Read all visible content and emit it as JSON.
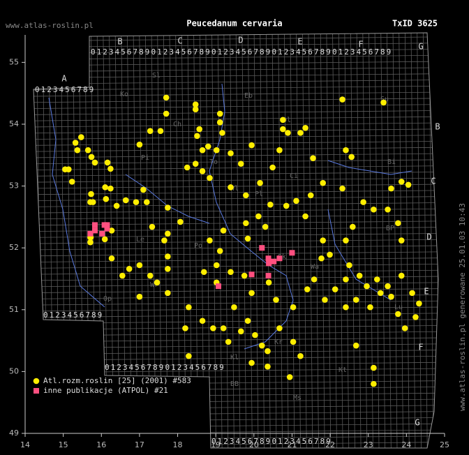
{
  "chart_data": {
    "type": "scatter",
    "title": "Peucedanum cervaria",
    "site": "www.atlas-roslin.pl",
    "taxon_id": "TxID 3625",
    "footer": "www.atlas-roslin.pl generowane 25.01.03 10:43",
    "xlim": [
      14,
      25
    ],
    "ylim": [
      49,
      55.45
    ],
    "xticks": [
      14,
      15,
      16,
      17,
      18,
      19,
      20,
      21,
      22,
      23,
      24,
      25
    ],
    "yticks": [
      49,
      50,
      51,
      52,
      53,
      54,
      55
    ],
    "legend": "lower left",
    "grid_columns": [
      "A",
      "B",
      "C",
      "D",
      "E",
      "F",
      "G"
    ],
    "grid_digits": "0123456789",
    "region_labels": [
      "Sl",
      "Ko",
      "Ch",
      "Eb",
      "Ol",
      "Su",
      "Pi",
      "Ci",
      "Bi",
      "To",
      "Wl",
      "Pl",
      "Le",
      "Po",
      "BP",
      "Wa",
      "Sk",
      "Lu",
      "Wr",
      "Op",
      "Kl",
      "Kr",
      "BB",
      "Ms",
      "Kt"
    ],
    "series": [
      {
        "name": "Atl.rozm.roslin [25] (2001) #583",
        "color": "#ffee00",
        "marker": "circle",
        "x": [
          22.32,
          23.4,
          17.7,
          18.47,
          18.47,
          17.7,
          19.11,
          19.11,
          20.76,
          20.76,
          20.89,
          21.35,
          21.22,
          18.57,
          18.51,
          17.28,
          17.55,
          19.17,
          15.47,
          15.32,
          15.37,
          15.65,
          15.74,
          15.83,
          16.16,
          15.14,
          15.05,
          15.23,
          15.73,
          16.1,
          15.78,
          16.12,
          16.4,
          15.71,
          17.0,
          16.24,
          16.24,
          16.64,
          16.91,
          17.19,
          17.1,
          17.33,
          17.74,
          18.25,
          18.47,
          18.65,
          18.8,
          19.02,
          18.65,
          18.84,
          19.39,
          19.66,
          19.94,
          19.39,
          19.79,
          20.16,
          20.49,
          20.67,
          21.55,
          21.81,
          21.49,
          21.11,
          20.85,
          20.43,
          20.12,
          19.79,
          19.2,
          18.84,
          18.07,
          17.74,
          16.27,
          16.09,
          15.72,
          16.27,
          16.55,
          17.0,
          17.28,
          17.46,
          17.74,
          17.74,
          18.29,
          18.2,
          18.29,
          18.65,
          18.93,
          19.2,
          19.48,
          19.66,
          19.84,
          20.03,
          20.21,
          20.36,
          20.67,
          21.03,
          21.22,
          21.03,
          20.58,
          20.39,
          19.94,
          19.39,
          19.11,
          19.02,
          19.75,
          21.4,
          21.58,
          21.86,
          22.13,
          22.41,
          22.5,
          22.77,
          22.96,
          23.23,
          23.32,
          23.6,
          23.78,
          23.96,
          24.24,
          24.33,
          24.15,
          23.87,
          23.51,
          23.05,
          22.68,
          22.41,
          22.41,
          22.59,
          22.87,
          23.14,
          23.51,
          23.78,
          23.87,
          23.6,
          23.87,
          24.05,
          22.41,
          22.56,
          22.32,
          21.77,
          21.99,
          23.14,
          23.14,
          22.68,
          20.94,
          20.36,
          19.94,
          19.33,
          18.69,
          17.0,
          16.73,
          15.71,
          15.71,
          17.74,
          17.65,
          19.02,
          19.84,
          20.3,
          21.35,
          21.81
        ],
        "y": [
          54.4,
          54.35,
          54.43,
          54.32,
          54.24,
          54.17,
          54.17,
          54.03,
          54.07,
          53.92,
          53.86,
          53.94,
          53.86,
          53.92,
          53.81,
          53.89,
          53.89,
          53.86,
          53.79,
          53.7,
          53.58,
          53.58,
          53.47,
          53.38,
          53.38,
          53.27,
          53.27,
          53.07,
          52.87,
          52.98,
          52.74,
          52.79,
          52.68,
          52.74,
          53.67,
          53.28,
          52.96,
          52.77,
          52.74,
          52.74,
          52.94,
          52.34,
          52.65,
          53.3,
          53.36,
          53.58,
          53.64,
          53.58,
          53.24,
          53.13,
          53.53,
          53.36,
          53.66,
          52.98,
          52.85,
          53.05,
          53.3,
          53.58,
          53.45,
          53.05,
          52.85,
          52.76,
          52.68,
          52.7,
          52.51,
          52.4,
          52.28,
          52.12,
          52.42,
          52.23,
          52.28,
          52.14,
          52.17,
          51.83,
          51.55,
          51.72,
          51.55,
          51.44,
          51.66,
          51.27,
          51.04,
          50.7,
          50.25,
          50.82,
          50.7,
          50.7,
          51.04,
          50.65,
          50.82,
          50.59,
          50.42,
          50.08,
          50.7,
          50.48,
          50.25,
          51.04,
          51.16,
          51.44,
          51.27,
          51.61,
          51.95,
          51.44,
          51.55,
          51.33,
          51.49,
          51.16,
          51.33,
          51.49,
          51.72,
          51.55,
          51.38,
          51.49,
          51.27,
          51.21,
          50.93,
          50.7,
          50.88,
          51.1,
          51.27,
          51.55,
          51.38,
          51.04,
          51.16,
          51.04,
          52.12,
          52.34,
          52.74,
          52.62,
          52.62,
          52.4,
          52.12,
          52.96,
          53.07,
          53.02,
          53.58,
          53.47,
          52.96,
          51.83,
          51.89,
          49.8,
          50.06,
          50.42,
          49.91,
          50.33,
          50.14,
          50.48,
          51.61,
          51.21,
          51.66,
          52.17,
          52.09,
          51.86,
          52.12,
          51.72,
          52.15,
          52.34,
          52.51,
          52.12
        ]
      },
      {
        "name": "inne publikacje (ATPOL) #21",
        "color": "#ff5080",
        "marker": "square",
        "x": [
          15.71,
          15.83,
          15.83,
          16.02,
          16.15,
          16.15,
          20.21,
          20.38,
          20.67,
          20.39,
          20.52,
          21.0,
          19.94,
          20.38,
          19.07,
          16.08
        ],
        "y": [
          52.23,
          52.37,
          52.28,
          52.23,
          52.37,
          52.31,
          52.0,
          51.83,
          51.83,
          51.75,
          51.78,
          51.92,
          51.57,
          51.55,
          51.38,
          52.37
        ]
      }
    ]
  }
}
